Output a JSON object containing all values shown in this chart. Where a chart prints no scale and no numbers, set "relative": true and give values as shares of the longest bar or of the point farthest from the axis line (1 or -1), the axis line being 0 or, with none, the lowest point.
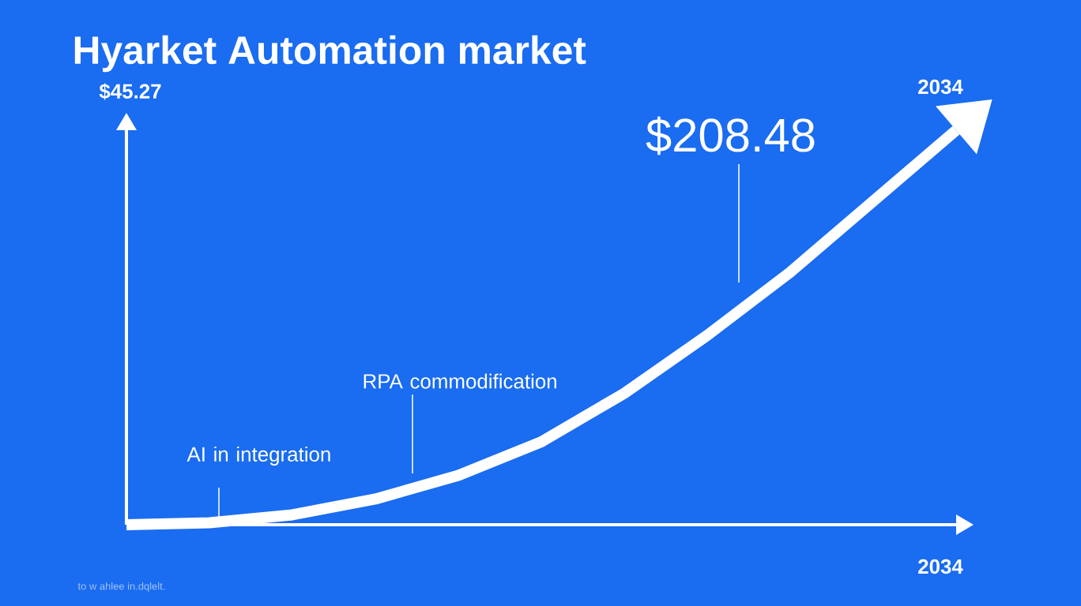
{
  "chart_data": {
    "type": "line",
    "title": "Hyarket Automation market",
    "relative": true,
    "categories": [
      null,
      null,
      null,
      null,
      null,
      null,
      null,
      null,
      null,
      null,
      null
    ],
    "series": [
      {
        "color": "#ffffff",
        "values": [
          0,
          0.005,
          0.025,
          0.065,
          0.125,
          0.21,
          0.333,
          0.48,
          0.64,
          0.82,
          1
        ]
      }
    ],
    "annotations": [
      "$45.27",
      "$208.48",
      "AI in integration",
      "RPA commodification",
      "2034",
      "2034",
      "to w ahlee in.dqlelt."
    ]
  }
}
